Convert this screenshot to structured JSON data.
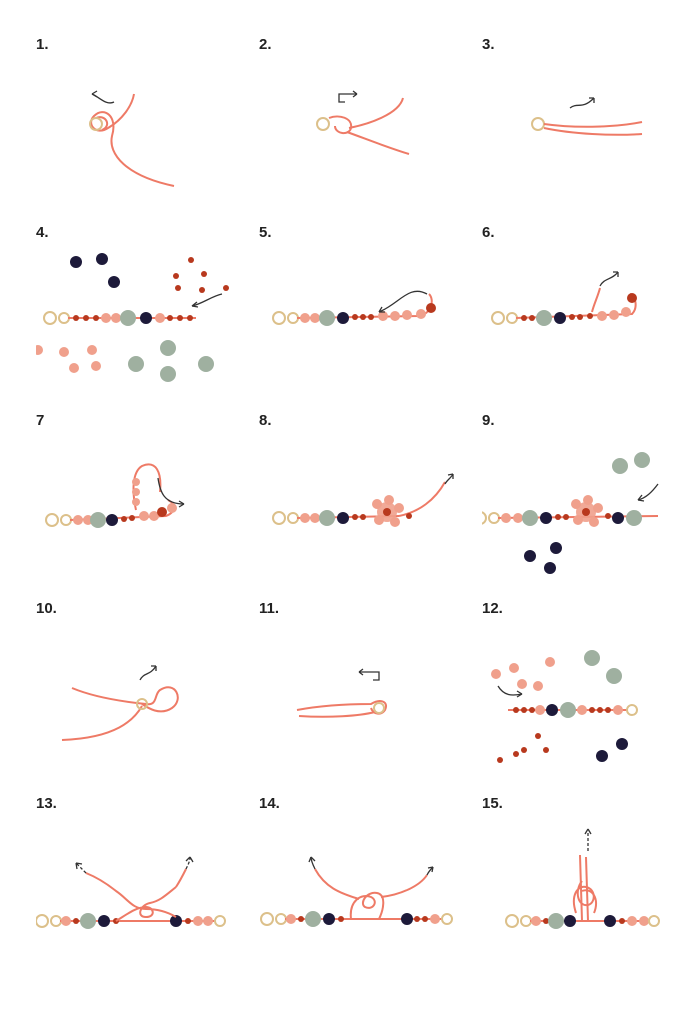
{
  "colors": {
    "cord": "#ee7a66",
    "bead_peach": "#f0a08c",
    "bead_rust": "#b8391e",
    "bead_navy": "#1d1a3a",
    "bead_sage": "#9fb0a0",
    "clasp_gold": "#dcc08a",
    "arrow": "#333333"
  },
  "steps": [
    {
      "label": "1."
    },
    {
      "label": "2."
    },
    {
      "label": "3."
    },
    {
      "label": "4."
    },
    {
      "label": "5."
    },
    {
      "label": "6."
    },
    {
      "label": "7"
    },
    {
      "label": "8."
    },
    {
      "label": "9."
    },
    {
      "label": "10."
    },
    {
      "label": "11."
    },
    {
      "label": "12."
    },
    {
      "label": "13."
    },
    {
      "label": "14."
    },
    {
      "label": "15."
    }
  ]
}
